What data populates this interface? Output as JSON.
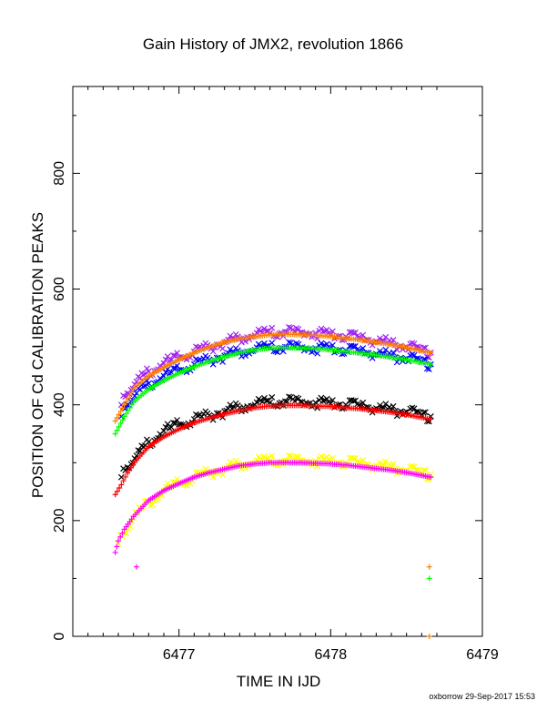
{
  "chart_data": {
    "type": "scatter",
    "title": "Gain History of JMX2, revolution 1866",
    "xlabel": "TIME IN IJD",
    "ylabel": "POSITION OF Cd CALIBRATION PEAKS",
    "xlim": [
      6476.3,
      6479.0
    ],
    "ylim": [
      0,
      950
    ],
    "x_ticks": [
      6477,
      6478,
      6479
    ],
    "y_ticks": [
      0,
      200,
      400,
      600,
      800
    ],
    "grid": false,
    "footer": "oxborrow 29-Sep-2017 15:53",
    "series": [
      {
        "color": "#a020f0",
        "marker": "x",
        "points": [
          [
            6476.62,
            400
          ],
          [
            6476.66,
            420
          ],
          [
            6476.72,
            440
          ],
          [
            6476.8,
            458
          ],
          [
            6476.9,
            472
          ],
          [
            6477.0,
            482
          ],
          [
            6477.1,
            492
          ],
          [
            6477.2,
            500
          ],
          [
            6477.3,
            508
          ],
          [
            6477.4,
            514
          ],
          [
            6477.5,
            520
          ],
          [
            6477.6,
            524
          ],
          [
            6477.7,
            526
          ],
          [
            6477.8,
            525
          ],
          [
            6477.9,
            524
          ],
          [
            6478.0,
            521
          ],
          [
            6478.1,
            518
          ],
          [
            6478.2,
            514
          ],
          [
            6478.3,
            510
          ],
          [
            6478.4,
            506
          ],
          [
            6478.5,
            500
          ],
          [
            6478.6,
            494
          ],
          [
            6478.66,
            490
          ]
        ]
      },
      {
        "color": "#0000ff",
        "marker": "x",
        "points": [
          [
            6476.62,
            380
          ],
          [
            6476.66,
            400
          ],
          [
            6476.72,
            420
          ],
          [
            6476.8,
            437
          ],
          [
            6476.9,
            450
          ],
          [
            6477.0,
            460
          ],
          [
            6477.1,
            470
          ],
          [
            6477.2,
            478
          ],
          [
            6477.3,
            485
          ],
          [
            6477.4,
            490
          ],
          [
            6477.5,
            495
          ],
          [
            6477.6,
            498
          ],
          [
            6477.7,
            500
          ],
          [
            6477.8,
            499
          ],
          [
            6477.9,
            498
          ],
          [
            6478.0,
            497
          ],
          [
            6478.1,
            494
          ],
          [
            6478.2,
            491
          ],
          [
            6478.3,
            488
          ],
          [
            6478.4,
            484
          ],
          [
            6478.5,
            480
          ],
          [
            6478.6,
            474
          ],
          [
            6478.66,
            470
          ]
        ]
      },
      {
        "color": "#000000",
        "marker": "x",
        "points": [
          [
            6476.62,
            275
          ],
          [
            6476.66,
            292
          ],
          [
            6476.72,
            312
          ],
          [
            6476.8,
            336
          ],
          [
            6476.9,
            355
          ],
          [
            6477.0,
            366
          ],
          [
            6477.1,
            375
          ],
          [
            6477.2,
            382
          ],
          [
            6477.3,
            389
          ],
          [
            6477.4,
            395
          ],
          [
            6477.5,
            400
          ],
          [
            6477.6,
            404
          ],
          [
            6477.7,
            406
          ],
          [
            6477.8,
            405
          ],
          [
            6477.9,
            404
          ],
          [
            6478.0,
            402
          ],
          [
            6478.1,
            400
          ],
          [
            6478.2,
            397
          ],
          [
            6478.3,
            394
          ],
          [
            6478.4,
            391
          ],
          [
            6478.5,
            388
          ],
          [
            6478.6,
            382
          ],
          [
            6478.66,
            380
          ]
        ]
      },
      {
        "color": "#ffff00",
        "marker": "x",
        "points": [
          [
            6476.6,
            160
          ],
          [
            6476.64,
            178
          ],
          [
            6476.7,
            205
          ],
          [
            6476.8,
            233
          ],
          [
            6476.9,
            252
          ],
          [
            6477.0,
            264
          ],
          [
            6477.1,
            275
          ],
          [
            6477.2,
            283
          ],
          [
            6477.3,
            290
          ],
          [
            6477.4,
            296
          ],
          [
            6477.5,
            300
          ],
          [
            6477.6,
            303
          ],
          [
            6477.7,
            304
          ],
          [
            6477.8,
            304
          ],
          [
            6477.9,
            303
          ],
          [
            6478.0,
            302
          ],
          [
            6478.1,
            300
          ],
          [
            6478.2,
            298
          ],
          [
            6478.3,
            295
          ],
          [
            6478.4,
            292
          ],
          [
            6478.5,
            287
          ],
          [
            6478.6,
            282
          ],
          [
            6478.66,
            280
          ]
        ]
      },
      {
        "color": "#ff7f00",
        "marker": "+",
        "points": [
          [
            6476.58,
            372
          ],
          [
            6476.64,
            400
          ],
          [
            6476.7,
            428
          ],
          [
            6476.8,
            450
          ],
          [
            6476.9,
            465
          ],
          [
            6477.0,
            478
          ],
          [
            6477.1,
            490
          ],
          [
            6477.2,
            500
          ],
          [
            6477.3,
            508
          ],
          [
            6477.4,
            514
          ],
          [
            6477.5,
            518
          ],
          [
            6477.6,
            521
          ],
          [
            6477.7,
            522
          ],
          [
            6477.8,
            521
          ],
          [
            6477.9,
            520
          ],
          [
            6478.0,
            518
          ],
          [
            6478.1,
            515
          ],
          [
            6478.2,
            512
          ],
          [
            6478.3,
            508
          ],
          [
            6478.4,
            504
          ],
          [
            6478.5,
            499
          ],
          [
            6478.6,
            493
          ],
          [
            6478.66,
            490
          ],
          [
            6478.65,
            120
          ],
          [
            6478.65,
            0
          ]
        ]
      },
      {
        "color": "#00ff00",
        "marker": "+",
        "points": [
          [
            6476.58,
            350
          ],
          [
            6476.64,
            380
          ],
          [
            6476.7,
            405
          ],
          [
            6476.8,
            427
          ],
          [
            6476.9,
            442
          ],
          [
            6477.0,
            455
          ],
          [
            6477.1,
            466
          ],
          [
            6477.2,
            475
          ],
          [
            6477.3,
            483
          ],
          [
            6477.4,
            490
          ],
          [
            6477.5,
            495
          ],
          [
            6477.6,
            498
          ],
          [
            6477.7,
            499
          ],
          [
            6477.8,
            498
          ],
          [
            6477.9,
            497
          ],
          [
            6478.0,
            495
          ],
          [
            6478.1,
            492
          ],
          [
            6478.2,
            489
          ],
          [
            6478.3,
            486
          ],
          [
            6478.4,
            482
          ],
          [
            6478.5,
            478
          ],
          [
            6478.6,
            473
          ],
          [
            6478.66,
            470
          ],
          [
            6478.65,
            100
          ]
        ]
      },
      {
        "color": "#ff0000",
        "marker": "+",
        "points": [
          [
            6476.58,
            245
          ],
          [
            6476.62,
            262
          ],
          [
            6476.66,
            282
          ],
          [
            6476.72,
            305
          ],
          [
            6476.8,
            328
          ],
          [
            6476.9,
            345
          ],
          [
            6477.0,
            358
          ],
          [
            6477.1,
            369
          ],
          [
            6477.2,
            377
          ],
          [
            6477.3,
            384
          ],
          [
            6477.4,
            390
          ],
          [
            6477.5,
            395
          ],
          [
            6477.6,
            398
          ],
          [
            6477.7,
            399
          ],
          [
            6477.8,
            399
          ],
          [
            6477.9,
            398
          ],
          [
            6478.0,
            397
          ],
          [
            6478.1,
            395
          ],
          [
            6478.2,
            393
          ],
          [
            6478.3,
            390
          ],
          [
            6478.4,
            387
          ],
          [
            6478.5,
            383
          ],
          [
            6478.6,
            378
          ],
          [
            6478.66,
            375
          ]
        ]
      },
      {
        "color": "#ff00ff",
        "marker": "+",
        "points": [
          [
            6476.58,
            145
          ],
          [
            6476.6,
            165
          ],
          [
            6476.64,
            185
          ],
          [
            6476.7,
            207
          ],
          [
            6476.8,
            235
          ],
          [
            6476.9,
            252
          ],
          [
            6477.0,
            264
          ],
          [
            6477.1,
            275
          ],
          [
            6477.2,
            283
          ],
          [
            6477.3,
            289
          ],
          [
            6477.4,
            295
          ],
          [
            6477.5,
            298
          ],
          [
            6477.6,
            300
          ],
          [
            6477.7,
            300
          ],
          [
            6477.8,
            300
          ],
          [
            6477.9,
            299
          ],
          [
            6478.0,
            298
          ],
          [
            6478.1,
            296
          ],
          [
            6478.2,
            293
          ],
          [
            6478.3,
            290
          ],
          [
            6478.4,
            287
          ],
          [
            6478.5,
            283
          ],
          [
            6478.6,
            278
          ],
          [
            6478.66,
            275
          ],
          [
            6476.72,
            120
          ]
        ]
      }
    ]
  }
}
